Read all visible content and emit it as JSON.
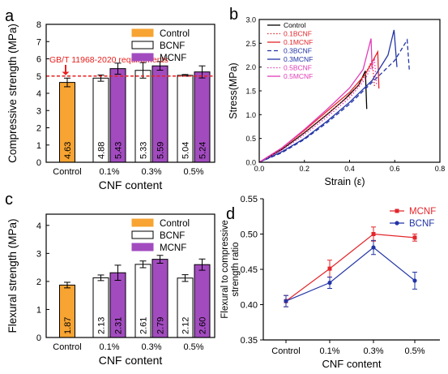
{
  "panel_labels": {
    "a": "a",
    "b": "b",
    "c": "c",
    "d": "d"
  },
  "colors": {
    "control": "#F7A433",
    "bcnf_fill": "#FFFFFF",
    "mcnf": "#A24BBF",
    "req_line": "#E8201E",
    "axis": "#000000",
    "line_red": "#E3262B",
    "line_blue": "#2234A6",
    "line_magenta": "#E23CB8",
    "line_black": "#000000"
  },
  "chart_data": [
    {
      "id": "a",
      "type": "bar",
      "title": "",
      "xlabel": "CNF content",
      "ylabel": "Compressive strength (MPa)",
      "ylim": [
        0,
        8
      ],
      "yticks": [
        "0",
        "1",
        "2",
        "3",
        "4",
        "5",
        "6",
        "7",
        "8"
      ],
      "categories": [
        "Control",
        "0.1%",
        "0.3%",
        "0.5%"
      ],
      "legend": [
        "Control",
        "BCNF",
        "MCNF"
      ],
      "legend_position": "top-right",
      "series": [
        {
          "name": "Control",
          "values": [
            4.63,
            null,
            null,
            null
          ],
          "errors": [
            0.25,
            null,
            null,
            null
          ]
        },
        {
          "name": "BCNF",
          "values": [
            null,
            4.88,
            5.33,
            5.04
          ],
          "errors": [
            null,
            0.18,
            0.45,
            0.05
          ]
        },
        {
          "name": "MCNF",
          "values": [
            null,
            5.43,
            5.59,
            5.24
          ],
          "errors": [
            null,
            0.32,
            0.25,
            0.35
          ]
        }
      ],
      "value_labels": [
        [
          "4.63"
        ],
        [
          "4.88",
          "5.43"
        ],
        [
          "5.33",
          "5.59"
        ],
        [
          "5.04",
          "5.24"
        ]
      ],
      "reference_line": {
        "value": 5.0,
        "label": "GB/T 11968-2020 requirements"
      }
    },
    {
      "id": "b",
      "type": "line",
      "title": "",
      "xlabel": "Strain (ε)",
      "ylabel": "Stress(MPa)",
      "xlim": [
        0.0,
        0.8
      ],
      "ylim": [
        0.0,
        3.0
      ],
      "xticks": [
        "0.0",
        "0.2",
        "0.4",
        "0.6",
        "0.8"
      ],
      "yticks": [
        "0.0",
        "0.5",
        "1.0",
        "1.5",
        "2.0",
        "2.5",
        "3.0"
      ],
      "legend_position": "top-left",
      "series": [
        {
          "name": "Control",
          "color": "black",
          "style": "solid",
          "points": [
            [
              0,
              0
            ],
            [
              0.1,
              0.27
            ],
            [
              0.2,
              0.62
            ],
            [
              0.3,
              1.0
            ],
            [
              0.38,
              1.33
            ],
            [
              0.44,
              1.62
            ],
            [
              0.47,
              1.92
            ],
            [
              0.476,
              1.12
            ]
          ]
        },
        {
          "name": "0.1BCNF",
          "color": "red",
          "style": "dotted",
          "points": [
            [
              0,
              0
            ],
            [
              0.1,
              0.28
            ],
            [
              0.2,
              0.63
            ],
            [
              0.3,
              1.01
            ],
            [
              0.4,
              1.4
            ],
            [
              0.46,
              1.75
            ],
            [
              0.5,
              2.15
            ],
            [
              0.51,
              1.6
            ]
          ]
        },
        {
          "name": "0.1MCNF",
          "color": "red",
          "style": "solid",
          "points": [
            [
              0,
              0
            ],
            [
              0.1,
              0.3
            ],
            [
              0.2,
              0.67
            ],
            [
              0.3,
              1.07
            ],
            [
              0.4,
              1.47
            ],
            [
              0.47,
              1.85
            ],
            [
              0.525,
              2.32
            ],
            [
              0.53,
              1.55
            ]
          ]
        },
        {
          "name": "0.3BCNF",
          "color": "blue",
          "style": "dashed",
          "points": [
            [
              0,
              0
            ],
            [
              0.1,
              0.2
            ],
            [
              0.2,
              0.48
            ],
            [
              0.3,
              0.83
            ],
            [
              0.4,
              1.22
            ],
            [
              0.5,
              1.68
            ],
            [
              0.6,
              2.14
            ],
            [
              0.655,
              2.57
            ],
            [
              0.665,
              1.9
            ]
          ]
        },
        {
          "name": "0.3MCNF",
          "color": "blue",
          "style": "solid",
          "points": [
            [
              0,
              0
            ],
            [
              0.1,
              0.22
            ],
            [
              0.2,
              0.5
            ],
            [
              0.3,
              0.86
            ],
            [
              0.4,
              1.26
            ],
            [
              0.5,
              1.72
            ],
            [
              0.57,
              2.25
            ],
            [
              0.597,
              2.78
            ],
            [
              0.61,
              2.0
            ]
          ]
        },
        {
          "name": "0.5BCNF",
          "color": "magenta",
          "style": "dotted",
          "points": [
            [
              0,
              0
            ],
            [
              0.1,
              0.25
            ],
            [
              0.2,
              0.58
            ],
            [
              0.3,
              0.95
            ],
            [
              0.4,
              1.35
            ],
            [
              0.47,
              1.75
            ],
            [
              0.51,
              2.15
            ],
            [
              0.52,
              1.6
            ]
          ]
        },
        {
          "name": "0.5MCNF",
          "color": "magenta",
          "style": "solid",
          "points": [
            [
              0,
              0
            ],
            [
              0.1,
              0.3
            ],
            [
              0.2,
              0.69
            ],
            [
              0.3,
              1.11
            ],
            [
              0.4,
              1.56
            ],
            [
              0.46,
              1.95
            ],
            [
              0.495,
              2.6
            ],
            [
              0.5,
              1.95
            ]
          ]
        }
      ]
    },
    {
      "id": "c",
      "type": "bar",
      "title": "",
      "xlabel": "CNF content",
      "ylabel": "Flexural strength (MPa)",
      "ylim": [
        0,
        4.4
      ],
      "yticks": [
        "0",
        "1",
        "2",
        "3",
        "4"
      ],
      "categories": [
        "Control",
        "0.1%",
        "0.3%",
        "0.5%"
      ],
      "legend": [
        "Control",
        "BCNF",
        "MCNF"
      ],
      "legend_position": "top-right",
      "series": [
        {
          "name": "Control",
          "values": [
            1.87,
            null,
            null,
            null
          ],
          "errors": [
            0.1,
            null,
            null,
            null
          ]
        },
        {
          "name": "BCNF",
          "values": [
            null,
            2.13,
            2.61,
            2.12
          ],
          "errors": [
            null,
            0.1,
            0.12,
            0.12
          ]
        },
        {
          "name": "MCNF",
          "values": [
            null,
            2.31,
            2.79,
            2.6
          ],
          "errors": [
            null,
            0.27,
            0.14,
            0.2
          ]
        }
      ],
      "value_labels": [
        [
          "1.87"
        ],
        [
          "2.13",
          "2.31"
        ],
        [
          "2.61",
          "2.79"
        ],
        [
          "2.12",
          "2.60"
        ]
      ]
    },
    {
      "id": "d",
      "type": "line",
      "title": "",
      "xlabel": "CNF content",
      "ylabel": "Flexural to compressive strength ratio",
      "ylim": [
        0.35,
        0.55
      ],
      "yticks": [
        "0.35",
        "0.40",
        "0.45",
        "0.50",
        "0.55"
      ],
      "categories": [
        "Control",
        "0.1%",
        "0.3%",
        "0.5%"
      ],
      "legend_position": "top-right",
      "series": [
        {
          "name": "MCNF",
          "color": "red",
          "marker": "square",
          "values": [
            0.405,
            0.451,
            0.5,
            0.495
          ],
          "errors": [
            0.008,
            0.012,
            0.01,
            0.005
          ]
        },
        {
          "name": "BCNF",
          "color": "blue",
          "marker": "circle",
          "values": [
            0.405,
            0.431,
            0.481,
            0.434
          ],
          "errors": [
            0.008,
            0.008,
            0.01,
            0.012
          ]
        }
      ]
    }
  ]
}
